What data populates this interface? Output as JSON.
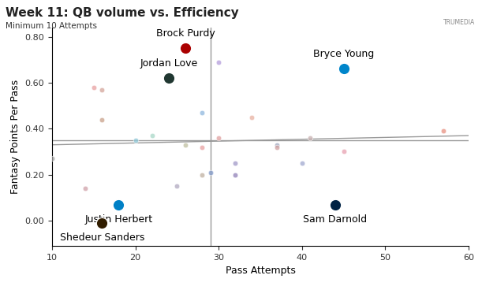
{
  "chart_data": {
    "type": "scatter",
    "title": "Week 11: QB volume vs. Efficiency",
    "subtitle": "Minimum 10 Attempts",
    "logo": "TRUMEDIA",
    "x_label": "Pass Attempts",
    "y_label": "Fantasy Points Per Pass",
    "xlim": [
      10,
      60
    ],
    "ylim": [
      -0.11,
      0.84
    ],
    "xticks": [
      10,
      20,
      30,
      40,
      50,
      60
    ],
    "yticks": [
      {
        "value": 0,
        "label": "0.00"
      },
      {
        "value": 0.2,
        "label": "0.20"
      },
      {
        "value": 0.4,
        "label": "0.40"
      },
      {
        "value": 0.6,
        "label": "0.60"
      },
      {
        "value": 0.8,
        "label": "0.80"
      }
    ],
    "grid": false,
    "series": [
      {
        "type": "scatter",
        "x": [
          26,
          24,
          45,
          18,
          16,
          44,
          30,
          15,
          16,
          16,
          28,
          34,
          10,
          20,
          22,
          26,
          28,
          30,
          37,
          37,
          41,
          45,
          57,
          32,
          40,
          32,
          28,
          29,
          25,
          14
        ],
        "values": [
          0.75,
          0.62,
          0.66,
          0.07,
          -0.01,
          0.07,
          0.69,
          0.58,
          0.57,
          0.44,
          0.47,
          0.45,
          0.27,
          0.35,
          0.37,
          0.33,
          0.32,
          0.36,
          0.33,
          0.32,
          0.36,
          0.3,
          0.39,
          0.25,
          0.25,
          0.2,
          0.2,
          0.21,
          0.15,
          0.14
        ],
        "point_labels": [
          "Brock Purdy",
          "Jordan Love",
          "Bryce Young",
          "Justin Herbert",
          "Shedeur Sanders",
          "Sam Darnold",
          null,
          null,
          null,
          null,
          null,
          null,
          null,
          null,
          null,
          null,
          null,
          null,
          null,
          null,
          null,
          null,
          null,
          null,
          null,
          null,
          null,
          null,
          null,
          null
        ],
        "colors": [
          "#aa0000",
          "#203731",
          "#0085ca",
          "#0080c6",
          "#311d00",
          "#002244",
          "#b39ddb",
          "#e8a0a0",
          "#d4a59a",
          "#c9a08a",
          "#8fb8de",
          "#e8b0a0",
          "#a0a0a0",
          "#8fc8d8",
          "#a8d8c8",
          "#c0c0a0",
          "#e8a0a0",
          "#e0a0a0",
          "#a0a8c0",
          "#d0a0a0",
          "#c8b0b0",
          "#e8a0b0",
          "#e89080",
          "#a098c8",
          "#a0a8d0",
          "#9080b8",
          "#c0b0a0",
          "#8098c8",
          "#b0a8c0",
          "#d0a0a8"
        ]
      },
      {
        "type": "line",
        "x": [
          10,
          60
        ],
        "values": [
          0.33,
          0.37
        ],
        "color": "#999999"
      },
      {
        "type": "line",
        "x": [
          10,
          60
        ],
        "values": [
          0.35,
          0.35
        ],
        "color": "#999999"
      },
      {
        "type": "line",
        "x": [
          29,
          29
        ],
        "values": [
          -0.11,
          0.84
        ],
        "color": "#999999"
      }
    ]
  }
}
